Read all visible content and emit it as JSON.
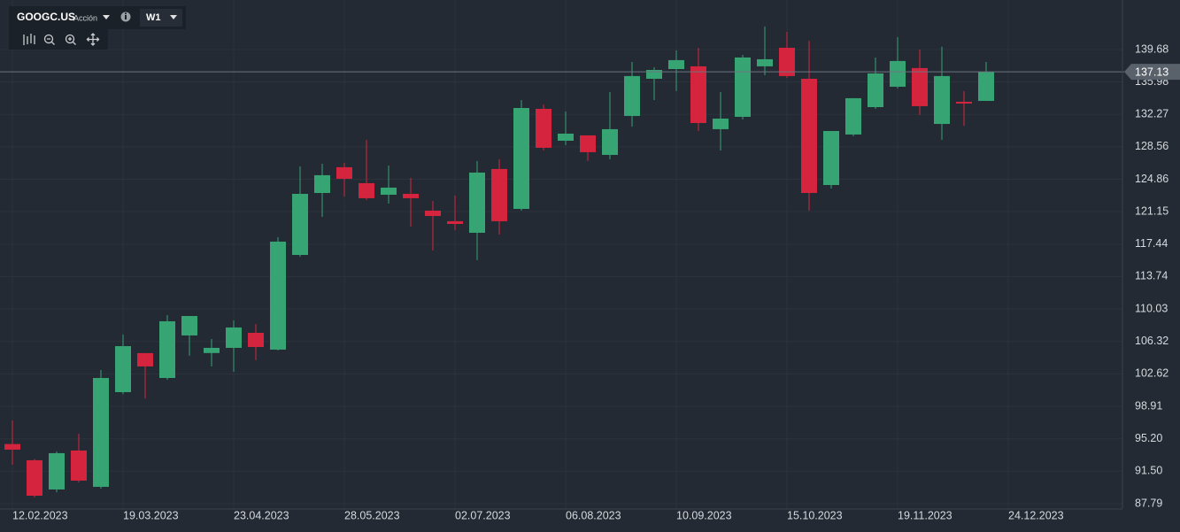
{
  "header": {
    "symbol": "GOOGC.US",
    "asset_type": "Acción",
    "timeframe": "W1"
  },
  "chart_data": {
    "type": "candlestick",
    "categories": [
      "12.02.2023",
      null,
      null,
      null,
      null,
      "19.03.2023",
      null,
      null,
      null,
      null,
      "23.04.2023",
      null,
      null,
      null,
      null,
      "28.05.2023",
      null,
      null,
      null,
      null,
      "02.07.2023",
      null,
      null,
      null,
      null,
      "06.08.2023",
      null,
      null,
      null,
      null,
      "10.09.2023",
      null,
      null,
      null,
      null,
      "15.10.2023",
      null,
      null,
      null,
      null,
      "19.11.2023",
      null,
      null,
      null,
      null,
      "24.12.2023"
    ],
    "open": [
      94.6,
      92.75,
      89.41,
      93.86,
      89.71,
      100.53,
      104.99,
      102.15,
      107.01,
      105.0,
      105.59,
      107.31,
      105.39,
      116.21,
      123.29,
      126.23,
      124.41,
      123.09,
      123.19,
      121.27,
      120.06,
      118.74,
      126.03,
      121.47,
      132.9,
      129.26,
      129.87,
      127.64,
      132.09,
      136.34,
      137.45,
      137.76,
      130.58,
      131.99,
      137.76,
      139.88,
      136.34,
      124.2,
      129.97,
      133.1,
      135.43,
      137.56,
      131.18,
      133.71,
      133.81,
      null
    ],
    "high": [
      97.3,
      92.9,
      93.76,
      95.78,
      103.06,
      107.11,
      104.99,
      109.33,
      109.23,
      106.6,
      108.73,
      108.32,
      118.24,
      126.33,
      126.63,
      126.73,
      129.36,
      126.43,
      125.01,
      122.38,
      123.0,
      126.94,
      127.14,
      133.91,
      133.41,
      132.6,
      129.87,
      134.82,
      138.26,
      137.66,
      139.58,
      139.88,
      134.82,
      139.07,
      142.31,
      141.7,
      140.69,
      130.37,
      134.12,
      138.77,
      141.1,
      139.68,
      140.0,
      134.93,
      138.26,
      null
    ],
    "low": [
      92.24,
      88.5,
      89.1,
      90.2,
      89.5,
      100.3,
      99.8,
      101.95,
      104.7,
      103.47,
      102.86,
      104.18,
      105.29,
      116.0,
      120.56,
      122.89,
      122.48,
      122.08,
      119.45,
      116.72,
      119.05,
      115.61,
      118.54,
      121.27,
      128.15,
      128.76,
      126.94,
      127.14,
      130.88,
      133.91,
      134.93,
      130.37,
      128.15,
      131.69,
      136.75,
      136.44,
      121.27,
      123.8,
      129.77,
      132.9,
      135.23,
      132.2,
      129.36,
      130.98,
      133.81,
      null
    ],
    "close": [
      93.96,
      88.7,
      93.56,
      90.42,
      102.15,
      105.79,
      103.47,
      108.63,
      109.23,
      105.59,
      107.92,
      105.69,
      117.73,
      123.19,
      125.32,
      124.91,
      122.69,
      123.9,
      122.69,
      120.66,
      119.75,
      125.62,
      120.06,
      133.0,
      128.45,
      130.07,
      127.95,
      130.58,
      136.65,
      137.35,
      138.47,
      131.28,
      131.79,
      138.77,
      138.57,
      136.65,
      123.29,
      130.37,
      134.12,
      136.95,
      138.37,
      133.21,
      136.65,
      133.51,
      137.13,
      null
    ],
    "up_color": "#37a473",
    "down_color": "#d5253e",
    "last_price": 137.13,
    "ylim": [
      87.18,
      145.34
    ],
    "yticks": [
      87.79,
      {
        "value": 91.5,
        "label": "91.50"
      },
      {
        "value": 95.2,
        "label": "95.20"
      },
      98.91,
      102.62,
      106.32,
      110.03,
      113.74,
      117.44,
      121.15,
      124.86,
      128.56,
      132.27,
      135.98,
      139.68
    ],
    "grid": true
  }
}
